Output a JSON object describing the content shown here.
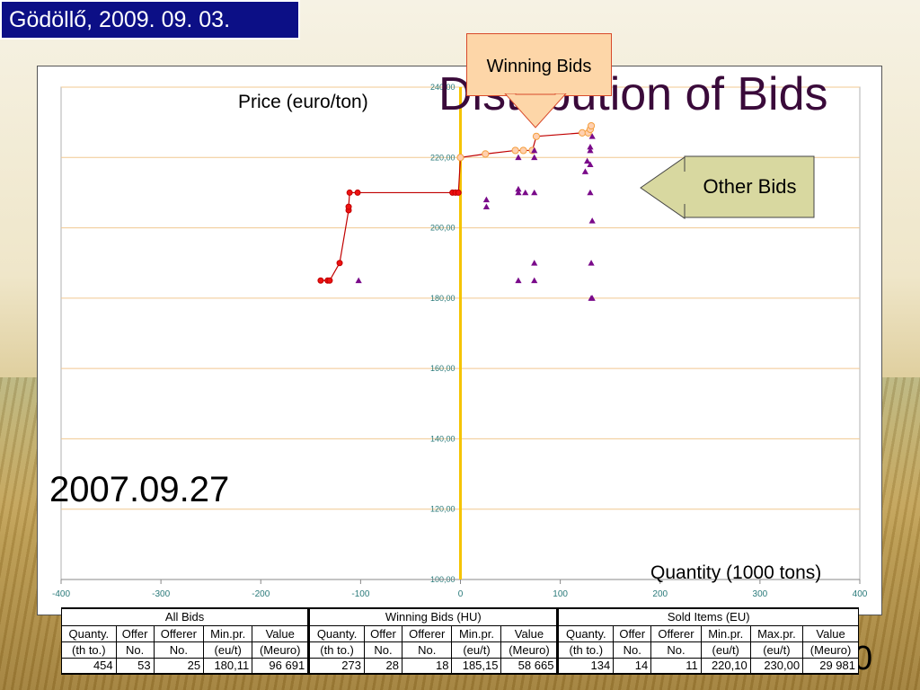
{
  "header": {
    "date_place": "Gödöllő, 2009. 09. 03.",
    "title": "Distribution of Bids",
    "date_label": "2007.09.27",
    "stray_digit": "0"
  },
  "callouts": {
    "winning": "Winning Bids",
    "other": "Other Bids"
  },
  "colors": {
    "winning_line": "#c00000",
    "winning_marker_fill": "#ee1111",
    "winning_open_marker": "#f4a040",
    "other_marker": "#7a0a8a",
    "zero_line": "#f5c400",
    "grid": "#f0c890",
    "badge_bg": "#0c0f86"
  },
  "chart_data": {
    "type": "scatter",
    "title": "",
    "xlabel": "Quantity (1000 tons)",
    "ylabel": "Price (euro/ton)",
    "xlim": [
      -400,
      400
    ],
    "ylim": [
      100,
      240
    ],
    "x_ticks": [
      -400,
      -300,
      -200,
      -100,
      0,
      100,
      200,
      300,
      400
    ],
    "y_ticks": [
      100,
      120,
      140,
      160,
      180,
      200,
      220,
      240
    ],
    "x_tick_labels": [
      "-400",
      "-300",
      "-200",
      "-100",
      "0",
      "100",
      "200",
      "300",
      "400"
    ],
    "y_tick_labels": [
      "100,00",
      "120,00",
      "140,00",
      "160,00",
      "180,00",
      "200,00",
      "220,00",
      "240,00"
    ],
    "grid": true,
    "series": [
      {
        "kind": "winning_hu_step",
        "points": [
          [
            -140,
            185
          ],
          [
            -133,
            185
          ],
          [
            -131,
            185
          ],
          [
            -121,
            190
          ],
          [
            -112,
            205
          ],
          [
            -112,
            206
          ],
          [
            -111,
            210
          ],
          [
            -103,
            210
          ],
          [
            -8,
            210
          ],
          [
            -5,
            210
          ],
          [
            -2,
            210
          ],
          [
            0,
            220
          ],
          [
            25,
            221
          ],
          [
            55,
            222
          ],
          [
            63,
            222
          ],
          [
            72,
            222
          ],
          [
            76,
            226
          ],
          [
            122,
            227
          ],
          [
            128,
            227
          ],
          [
            130,
            228
          ],
          [
            131,
            229
          ]
        ]
      },
      {
        "kind": "other_bids",
        "points": [
          [
            -102,
            185
          ],
          [
            26,
            206
          ],
          [
            26,
            208
          ],
          [
            58,
            211
          ],
          [
            58,
            210
          ],
          [
            58,
            220
          ],
          [
            58,
            185
          ],
          [
            65,
            210
          ],
          [
            74,
            210
          ],
          [
            74,
            220
          ],
          [
            74,
            222
          ],
          [
            74,
            190
          ],
          [
            74,
            185
          ],
          [
            125,
            216
          ],
          [
            127,
            219
          ],
          [
            130,
            218
          ],
          [
            130,
            210
          ],
          [
            130,
            222
          ],
          [
            131,
            190
          ],
          [
            131,
            180
          ],
          [
            132,
            180
          ],
          [
            132,
            202
          ],
          [
            130,
            223
          ],
          [
            132,
            226
          ]
        ]
      }
    ]
  },
  "summary_table": {
    "groups": [
      "All Bids",
      "Winning Bids (HU)",
      "Sold Items (EU)"
    ],
    "headers": [
      [
        "Quanty.",
        "(th to.)"
      ],
      [
        "Offer",
        "No."
      ],
      [
        "Offerer",
        "No."
      ],
      [
        "Min.pr.",
        "(eu/t)"
      ],
      [
        "Value",
        "(Meuro)"
      ],
      [
        "Quanty.",
        "(th to.)"
      ],
      [
        "Offer",
        "No."
      ],
      [
        "Offerer",
        "No."
      ],
      [
        "Min.pr.",
        "(eu/t)"
      ],
      [
        "Value",
        "(Meuro)"
      ],
      [
        "Quanty.",
        "(th to.)"
      ],
      [
        "Offer",
        "No."
      ],
      [
        "Offerer",
        "No."
      ],
      [
        "Min.pr.",
        "(eu/t)"
      ],
      [
        "Max.pr.",
        "(eu/t)"
      ],
      [
        "Value",
        "(Meuro)"
      ]
    ],
    "values": [
      "454",
      "53",
      "25",
      "180,11",
      "96 691",
      "273",
      "28",
      "18",
      "185,15",
      "58 665",
      "134",
      "14",
      "11",
      "220,10",
      "230,00",
      "29 981"
    ]
  }
}
